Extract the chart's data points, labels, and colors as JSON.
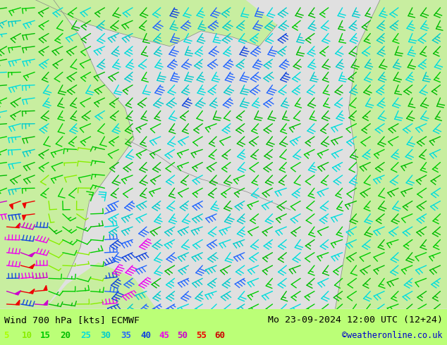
{
  "title_left": "Wind 700 hPa [kts] ECMWF",
  "title_right": "Mo 23-09-2024 12:00 UTC (12+24)",
  "credit": "©weatheronline.co.uk",
  "legend_values": [
    "5",
    "10",
    "15",
    "20",
    "25",
    "30",
    "35",
    "40",
    "45",
    "50",
    "55",
    "60"
  ],
  "legend_colors": [
    "#aaff00",
    "#88ee00",
    "#00cc00",
    "#00bb00",
    "#00dddd",
    "#00cccc",
    "#2266ff",
    "#1144dd",
    "#ee00ee",
    "#cc00cc",
    "#ee0000",
    "#cc0000"
  ],
  "bg_color": "#e8e8e8",
  "map_bg_sea": "#e0e0e0",
  "map_bg_land": "#c8eea0",
  "bottom_bar_color": "#bbff77",
  "fig_width": 6.34,
  "fig_height": 4.9,
  "dpi": 100,
  "title_fontsize": 9.5,
  "legend_fontsize": 9,
  "credit_color": "#0000cc",
  "credit_fontsize": 8.5,
  "barb_lw": 1.0,
  "nx": 32,
  "ny": 24
}
